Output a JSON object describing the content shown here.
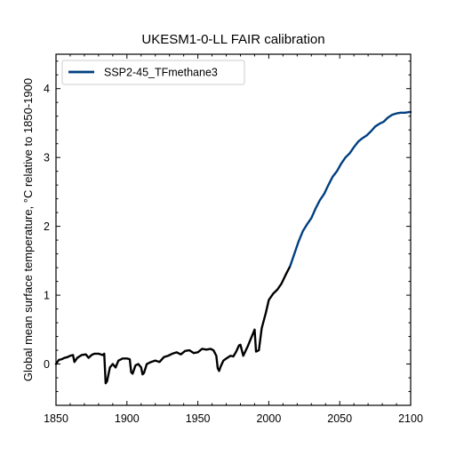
{
  "chart_data": {
    "type": "line",
    "title": "UKESM1-0-LL FAIR calibration",
    "xlabel": "",
    "ylabel": "Global mean surface temperature, °C relative to 1850-1900",
    "xlim": [
      1850,
      2100
    ],
    "ylim": [
      -0.6,
      4.5
    ],
    "xticks": [
      1850,
      1900,
      1950,
      2000,
      2050,
      2100
    ],
    "yticks": [
      0,
      1,
      2,
      3,
      4
    ],
    "legend": {
      "placement": "top-left",
      "entries": [
        "SSP2-45_TFmethane3"
      ]
    },
    "grid": false,
    "series": [
      {
        "name": "",
        "color": "#000000",
        "x": [
          1850,
          1852,
          1854,
          1856,
          1858,
          1860,
          1862,
          1863,
          1865,
          1868,
          1871,
          1873,
          1875,
          1877,
          1880,
          1883,
          1884,
          1885,
          1886,
          1888,
          1890,
          1892,
          1894,
          1897,
          1900,
          1902,
          1903,
          1904,
          1906,
          1908,
          1910,
          1911,
          1912,
          1914,
          1917,
          1920,
          1923,
          1926,
          1929,
          1932,
          1935,
          1938,
          1941,
          1944,
          1947,
          1950,
          1953,
          1956,
          1959,
          1961,
          1963,
          1964,
          1965,
          1966,
          1968,
          1970,
          1973,
          1975,
          1977,
          1979,
          1980,
          1982,
          1985,
          1988,
          1990,
          1991,
          1993,
          1995,
          1998,
          2000,
          2003,
          2006,
          2009,
          2012,
          2015
        ],
        "y": [
          0.0,
          0.06,
          0.07,
          0.09,
          0.1,
          0.12,
          0.13,
          0.03,
          0.09,
          0.13,
          0.14,
          0.09,
          0.13,
          0.15,
          0.15,
          0.13,
          0.15,
          -0.28,
          -0.25,
          -0.05,
          0.0,
          -0.05,
          0.05,
          0.08,
          0.08,
          0.07,
          -0.12,
          -0.14,
          -0.02,
          0.0,
          -0.05,
          -0.15,
          -0.13,
          0.0,
          0.03,
          0.05,
          0.03,
          0.1,
          0.12,
          0.15,
          0.17,
          0.14,
          0.19,
          0.2,
          0.16,
          0.17,
          0.22,
          0.21,
          0.22,
          0.2,
          0.12,
          -0.06,
          -0.1,
          -0.04,
          0.05,
          0.08,
          0.12,
          0.11,
          0.18,
          0.27,
          0.28,
          0.12,
          0.25,
          0.4,
          0.5,
          0.18,
          0.2,
          0.52,
          0.75,
          0.93,
          1.02,
          1.08,
          1.17,
          1.3,
          1.42
        ]
      },
      {
        "name": "SSP2-45_TFmethane3",
        "color": "#003f7f",
        "x": [
          2015,
          2018,
          2021,
          2024,
          2027,
          2030,
          2033,
          2036,
          2039,
          2042,
          2045,
          2048,
          2051,
          2054,
          2057,
          2060,
          2063,
          2066,
          2069,
          2072,
          2075,
          2078,
          2081,
          2084,
          2087,
          2090,
          2093,
          2096,
          2099,
          2100
        ],
        "y": [
          1.42,
          1.6,
          1.78,
          1.93,
          2.03,
          2.12,
          2.26,
          2.38,
          2.47,
          2.6,
          2.72,
          2.8,
          2.91,
          3.0,
          3.06,
          3.15,
          3.23,
          3.28,
          3.32,
          3.38,
          3.45,
          3.49,
          3.52,
          3.58,
          3.62,
          3.64,
          3.65,
          3.65,
          3.66,
          3.66
        ]
      }
    ]
  }
}
